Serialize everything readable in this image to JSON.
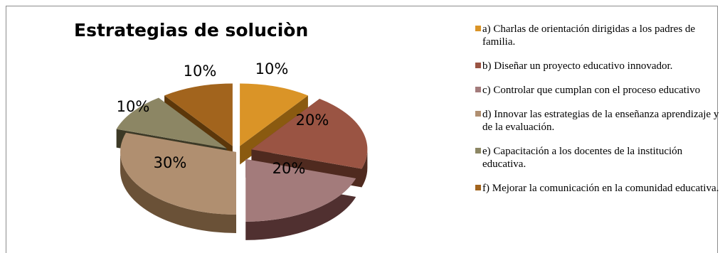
{
  "chart_data": {
    "type": "pie",
    "title": "Estrategias de soluciòn",
    "legend_position": "right",
    "slices": [
      {
        "label": "a)    Charlas de orientación dirigidas a los padres de familia.",
        "value": 10,
        "display": "10%",
        "color": "#DA9427",
        "side": "#8A5A10",
        "explode": 0.11
      },
      {
        "label": "b)    Diseñar un proyecto educativo innovador.",
        "value": 20,
        "display": "20%",
        "color": "#9A5443",
        "side": "#4F2A1F",
        "explode": 0.15
      },
      {
        "label": "c)    Controlar que cumplan con el proceso educativo",
        "value": 20,
        "display": "20%",
        "color": "#A37B7B",
        "side": "#503030",
        "explode": 0.15
      },
      {
        "label": "d)    Innovar las estrategias de la enseñanza aprendizaje y de la evaluación.",
        "value": 30,
        "display": "30%",
        "color": "#B08F70",
        "side": "#6A5137",
        "explode": 0.0
      },
      {
        "label": "e)    Capacitación a los docentes de la institución  educativa.",
        "value": 10,
        "display": "10%",
        "color": "#8C8664",
        "side": "#3C3926",
        "explode": 0.11
      },
      {
        "label": "f)    Mejorar la comunicación en la comunidad educativa.",
        "value": 10,
        "display": "10%",
        "color": "#A2641D",
        "side": "#5C370A",
        "explode": 0.11
      }
    ]
  }
}
